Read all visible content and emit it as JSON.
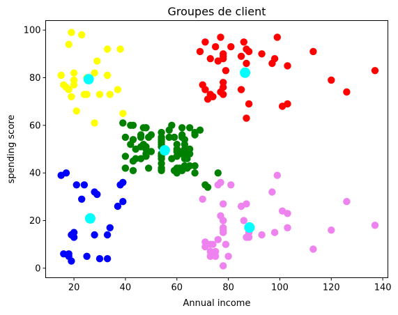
{
  "chart_data": {
    "type": "scatter",
    "title": "Groupes de client",
    "xlabel": "Annual income",
    "ylabel": "spending score",
    "xlim": [
      9,
      142
    ],
    "ylim": [
      -4,
      104
    ],
    "xticks": [
      20,
      40,
      60,
      80,
      100,
      120,
      140
    ],
    "yticks": [
      0,
      20,
      40,
      60,
      80,
      100
    ],
    "grid": false,
    "series": [
      {
        "color": "#ffff00",
        "points": [
          [
            15,
            81
          ],
          [
            16,
            77
          ],
          [
            17,
            76
          ],
          [
            18,
            94
          ],
          [
            19,
            72
          ],
          [
            19,
            99
          ],
          [
            20,
            77
          ],
          [
            20,
            79
          ],
          [
            21,
            66
          ],
          [
            20,
            82
          ],
          [
            23,
            98
          ],
          [
            24,
            73
          ],
          [
            25,
            73
          ],
          [
            28,
            82
          ],
          [
            28,
            61
          ],
          [
            29,
            87
          ],
          [
            30,
            73
          ],
          [
            33,
            92
          ],
          [
            33,
            81
          ],
          [
            34,
            73
          ],
          [
            37,
            75
          ],
          [
            38,
            92
          ],
          [
            39,
            65
          ],
          [
            18,
            75
          ],
          [
            25,
            80
          ]
        ]
      },
      {
        "color": "#ff0000",
        "points": [
          [
            69,
            91
          ],
          [
            70,
            77
          ],
          [
            71,
            95
          ],
          [
            71,
            75
          ],
          [
            72,
            71
          ],
          [
            73,
            88
          ],
          [
            73,
            73
          ],
          [
            74,
            72
          ],
          [
            75,
            93
          ],
          [
            76,
            87
          ],
          [
            77,
            97
          ],
          [
            77,
            74
          ],
          [
            78,
            90
          ],
          [
            78,
            88
          ],
          [
            78,
            76
          ],
          [
            78,
            73
          ],
          [
            78,
            89
          ],
          [
            78,
            78
          ],
          [
            79,
            83
          ],
          [
            81,
            93
          ],
          [
            85,
            75
          ],
          [
            86,
            95
          ],
          [
            87,
            63
          ],
          [
            87,
            92
          ],
          [
            87,
            86
          ],
          [
            88,
            69
          ],
          [
            88,
            91
          ],
          [
            93,
            90
          ],
          [
            97,
            86
          ],
          [
            98,
            88
          ],
          [
            99,
            97
          ],
          [
            101,
            68
          ],
          [
            103,
            85
          ],
          [
            103,
            69
          ],
          [
            113,
            91
          ],
          [
            120,
            79
          ],
          [
            126,
            74
          ],
          [
            137,
            83
          ],
          [
            85,
            89
          ]
        ]
      },
      {
        "color": "#008000",
        "points": [
          [
            39,
            61
          ],
          [
            40,
            55
          ],
          [
            40,
            47
          ],
          [
            40,
            42
          ],
          [
            40,
            42
          ],
          [
            42,
            52
          ],
          [
            42,
            60
          ],
          [
            43,
            54
          ],
          [
            43,
            60
          ],
          [
            43,
            45
          ],
          [
            43,
            41
          ],
          [
            44,
            50
          ],
          [
            44,
            46
          ],
          [
            46,
            51
          ],
          [
            46,
            46
          ],
          [
            46,
            56
          ],
          [
            46,
            55
          ],
          [
            47,
            52
          ],
          [
            47,
            59
          ],
          [
            48,
            51
          ],
          [
            48,
            59
          ],
          [
            48,
            50
          ],
          [
            48,
            48
          ],
          [
            48,
            59
          ],
          [
            48,
            47
          ],
          [
            49,
            55
          ],
          [
            49,
            42
          ],
          [
            50,
            49
          ],
          [
            50,
            56
          ],
          [
            54,
            47
          ],
          [
            54,
            54
          ],
          [
            54,
            53
          ],
          [
            54,
            48
          ],
          [
            54,
            52
          ],
          [
            54,
            42
          ],
          [
            54,
            51
          ],
          [
            54,
            55
          ],
          [
            54,
            41
          ],
          [
            54,
            44
          ],
          [
            54,
            57
          ],
          [
            54,
            46
          ],
          [
            57,
            58
          ],
          [
            57,
            55
          ],
          [
            58,
            60
          ],
          [
            58,
            46
          ],
          [
            59,
            55
          ],
          [
            59,
            41
          ],
          [
            60,
            49
          ],
          [
            60,
            40
          ],
          [
            60,
            42
          ],
          [
            60,
            52
          ],
          [
            60,
            47
          ],
          [
            60,
            50
          ],
          [
            61,
            42
          ],
          [
            61,
            49
          ],
          [
            62,
            41
          ],
          [
            62,
            48
          ],
          [
            62,
            59
          ],
          [
            62,
            55
          ],
          [
            62,
            56
          ],
          [
            62,
            42
          ],
          [
            63,
            50
          ],
          [
            63,
            46
          ],
          [
            63,
            43
          ],
          [
            63,
            48
          ],
          [
            63,
            52
          ],
          [
            63,
            54
          ],
          [
            64,
            42
          ],
          [
            64,
            46
          ],
          [
            65,
            48
          ],
          [
            65,
            50
          ],
          [
            65,
            43
          ],
          [
            65,
            59
          ],
          [
            67,
            43
          ],
          [
            67,
            57
          ],
          [
            67,
            56
          ],
          [
            67,
            40
          ],
          [
            69,
            58
          ],
          [
            71,
            35
          ],
          [
            72,
            34
          ],
          [
            76,
            40
          ]
        ]
      },
      {
        "color": "#0000ff",
        "points": [
          [
            15,
            39
          ],
          [
            16,
            6
          ],
          [
            17,
            40
          ],
          [
            18,
            6
          ],
          [
            19,
            3
          ],
          [
            19,
            14
          ],
          [
            20,
            15
          ],
          [
            20,
            13
          ],
          [
            21,
            35
          ],
          [
            23,
            29
          ],
          [
            24,
            35
          ],
          [
            25,
            5
          ],
          [
            28,
            14
          ],
          [
            28,
            32
          ],
          [
            29,
            31
          ],
          [
            30,
            4
          ],
          [
            33,
            4
          ],
          [
            33,
            14
          ],
          [
            34,
            17
          ],
          [
            37,
            26
          ],
          [
            38,
            35
          ],
          [
            39,
            36
          ],
          [
            39,
            28
          ],
          [
            18,
            5
          ]
        ]
      },
      {
        "color": "#ee82ee",
        "points": [
          [
            70,
            29
          ],
          [
            71,
            11
          ],
          [
            71,
            9
          ],
          [
            73,
            5
          ],
          [
            73,
            7
          ],
          [
            73,
            10
          ],
          [
            74,
            10
          ],
          [
            75,
            5
          ],
          [
            75,
            7
          ],
          [
            76,
            12
          ],
          [
            77,
            36
          ],
          [
            77,
            22
          ],
          [
            78,
            17
          ],
          [
            78,
            20
          ],
          [
            78,
            16
          ],
          [
            78,
            1
          ],
          [
            78,
            27
          ],
          [
            78,
            20
          ],
          [
            78,
            15
          ],
          [
            80,
            5
          ],
          [
            81,
            35
          ],
          [
            85,
            26
          ],
          [
            86,
            20
          ],
          [
            87,
            27
          ],
          [
            87,
            13
          ],
          [
            88,
            13
          ],
          [
            88,
            15
          ],
          [
            93,
            14
          ],
          [
            97,
            32
          ],
          [
            98,
            15
          ],
          [
            99,
            39
          ],
          [
            101,
            24
          ],
          [
            103,
            17
          ],
          [
            103,
            23
          ],
          [
            113,
            8
          ],
          [
            120,
            16
          ],
          [
            126,
            28
          ],
          [
            137,
            18
          ],
          [
            79,
            10
          ],
          [
            76,
            35
          ]
        ]
      },
      {
        "color": "#00ffff",
        "role": "centroid",
        "points": [
          [
            25.7,
            79.4
          ],
          [
            86.5,
            82.1
          ],
          [
            55.3,
            49.5
          ],
          [
            26.3,
            20.9
          ],
          [
            88.2,
            17.1
          ]
        ]
      }
    ]
  }
}
